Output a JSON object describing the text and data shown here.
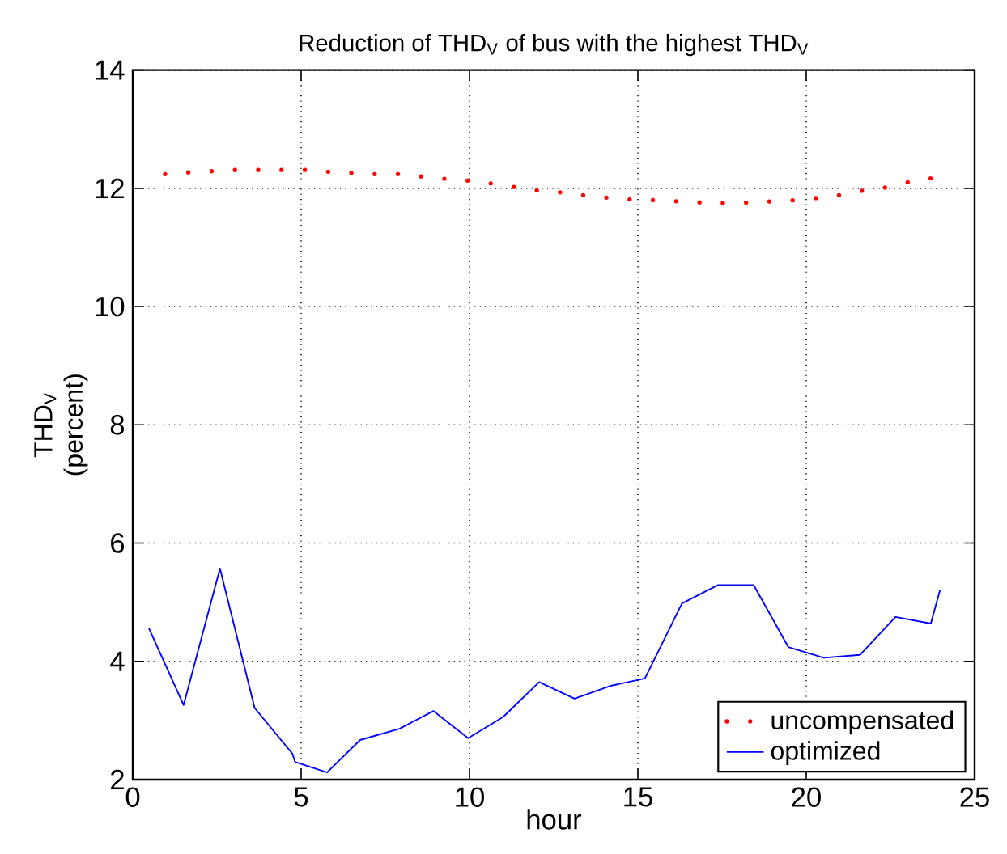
{
  "chart_data": {
    "type": "line",
    "title": "Reduction of THD$_{V}$ of bus with the highest THD$_{V}$",
    "xlabel": "hour",
    "ylabel": "THD$_{V}$ (percent)",
    "xlim": [
      0,
      25
    ],
    "xticks": [
      0,
      5,
      10,
      15,
      20,
      25
    ],
    "ylim": [
      2,
      14
    ],
    "yticks": [
      2,
      4,
      6,
      8,
      10,
      12,
      14
    ],
    "grid": true,
    "legend": "bottom right",
    "marker": "none",
    "series": [
      {
        "name": "uncompensated",
        "color": "#ff0000",
        "line_style": "dotted",
        "x": [
          0.96,
          1.65,
          2.35,
          3.04,
          3.73,
          4.43,
          5.12,
          5.81,
          6.5,
          7.2,
          7.89,
          8.58,
          9.28,
          9.97,
          10.66,
          11.36,
          12.05,
          12.74,
          13.43,
          14.13,
          14.82,
          15.51,
          16.21,
          16.9,
          17.59,
          18.29,
          18.98,
          19.67,
          20.36,
          21.06,
          21.75,
          22.44,
          23.14,
          23.83
        ],
        "values": [
          12.24,
          12.27,
          12.29,
          12.31,
          12.31,
          12.31,
          12.31,
          12.28,
          12.26,
          12.24,
          12.24,
          12.2,
          12.16,
          12.13,
          12.08,
          12.02,
          11.96,
          11.93,
          11.88,
          11.84,
          11.81,
          11.8,
          11.78,
          11.76,
          11.75,
          11.76,
          11.78,
          11.8,
          11.84,
          11.89,
          11.97,
          12.02,
          12.12,
          12.18
        ]
      },
      {
        "name": "optimized",
        "color": "#0000ff",
        "line_style": "solid",
        "x": [
          0.48,
          1.51,
          2.59,
          3.62,
          4.74,
          4.82,
          5.77,
          6.75,
          7.92,
          8.93,
          9.96,
          11.0,
          12.07,
          13.12,
          14.22,
          15.21,
          16.31,
          17.38,
          18.44,
          19.47,
          20.52,
          21.6,
          22.65,
          23.7,
          23.97
        ],
        "values": [
          4.56,
          3.26,
          5.57,
          3.21,
          2.44,
          2.3,
          2.12,
          2.67,
          2.86,
          3.16,
          2.7,
          3.06,
          3.65,
          3.37,
          3.59,
          3.71,
          4.98,
          5.29,
          5.29,
          4.24,
          4.06,
          4.11,
          4.75,
          4.64,
          5.2
        ]
      }
    ]
  }
}
